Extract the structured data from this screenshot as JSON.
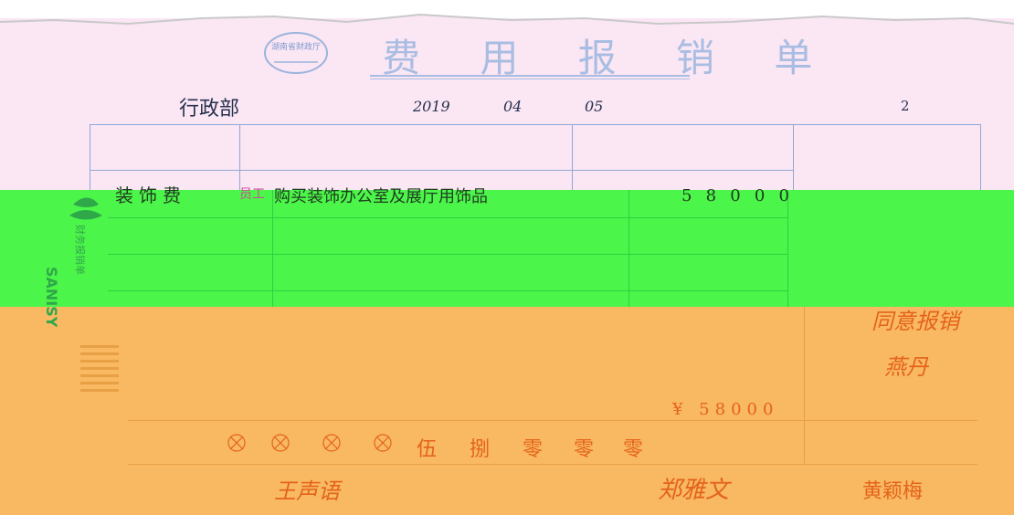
{
  "form": {
    "title": "费 用 报 销 单",
    "issuer_seal": "湖南省财政厅"
  },
  "header": {
    "department": "行政部",
    "year": "2019",
    "month": "04",
    "day": "05",
    "attachments_count": "2"
  },
  "items": [
    {
      "category": "装饰费",
      "purpose_prefix": "员工",
      "purpose": "购买装饰办公室及展厅用饰品",
      "amount_digits": [
        "5",
        "8",
        "0",
        "0",
        "0"
      ]
    }
  ],
  "total": {
    "amount_figure": "¥ 58000",
    "amount_words": [
      "伍",
      "捌",
      "零",
      "零",
      "零"
    ]
  },
  "approval": {
    "remark_text": "同意报销",
    "approver_signature": "燕丹",
    "leader_signature": "王声语",
    "reviewer_signature": "郑雅文",
    "claimant_signature": "黄颖梅"
  },
  "side_label": {
    "brand": "SANISY",
    "product": "财务报销单"
  },
  "colors": {
    "pink_band": "#fbe6f4",
    "green_band": "#4cf54a",
    "orange_band": "#f9b862",
    "printed_ink": "#9bb4dc",
    "handwriting_dark": "#27324f",
    "handwriting_orange": "#e4631a"
  }
}
